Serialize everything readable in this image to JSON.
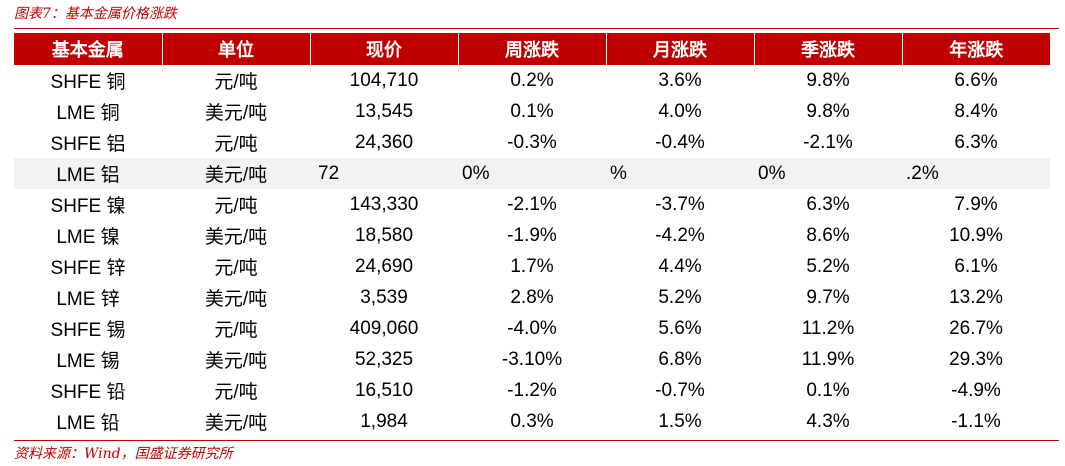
{
  "caption": "图表7：基本金属价格涨跌",
  "source": "资料来源：Wind，国盛证券研究所",
  "colors": {
    "header_bg": "#c00000",
    "positive": "#ff0000",
    "negative": "#00a040"
  },
  "headers": [
    "基本金属",
    "单位",
    "现价",
    "周涨跌",
    "月涨跌",
    "季涨跌",
    "年涨跌"
  ],
  "rows": [
    {
      "metal": "SHFE 铜",
      "unit": "元/吨",
      "price": "104,710",
      "week": "0.2%",
      "month": "3.6%",
      "quarter": "9.8%",
      "year": "6.6%"
    },
    {
      "metal": "LME 铜",
      "unit": "美元/吨",
      "price": "13,545",
      "week": "0.1%",
      "month": "4.0%",
      "quarter": "9.8%",
      "year": "8.4%"
    },
    {
      "metal": "SHFE 铝",
      "unit": "元/吨",
      "price": "24,360",
      "week": "-0.3%",
      "month": "-0.4%",
      "quarter": "-2.1%",
      "year": "6.3%"
    },
    {
      "metal": "LME 铝",
      "unit": "美元/吨",
      "price": "72",
      "week": "0%",
      "month": "%",
      "quarter": "0%",
      "year": ".2%"
    },
    {
      "metal": "SHFE 镍",
      "unit": "元/吨",
      "price": "143,330",
      "week": "-2.1%",
      "month": "-3.7%",
      "quarter": "6.3%",
      "year": "7.9%"
    },
    {
      "metal": "LME 镍",
      "unit": "美元/吨",
      "price": "18,580",
      "week": "-1.9%",
      "month": "-4.2%",
      "quarter": "8.6%",
      "year": "10.9%"
    },
    {
      "metal": "SHFE 锌",
      "unit": "元/吨",
      "price": "24,690",
      "week": "1.7%",
      "month": "4.4%",
      "quarter": "5.2%",
      "year": "6.1%"
    },
    {
      "metal": "LME 锌",
      "unit": "美元/吨",
      "price": "3,539",
      "week": "2.8%",
      "month": "5.2%",
      "quarter": "9.7%",
      "year": "13.2%"
    },
    {
      "metal": "SHFE 锡",
      "unit": "元/吨",
      "price": "409,060",
      "week": "-4.0%",
      "month": "5.6%",
      "quarter": "11.2%",
      "year": "26.7%"
    },
    {
      "metal": "LME 锡",
      "unit": "美元/吨",
      "price": "52,325",
      "week": "-3.10%",
      "month": "6.8%",
      "quarter": "11.9%",
      "year": "29.3%"
    },
    {
      "metal": "SHFE 铅",
      "unit": "元/吨",
      "price": "16,510",
      "week": "-1.2%",
      "month": "-0.7%",
      "quarter": "0.1%",
      "year": "-4.9%"
    },
    {
      "metal": "LME 铅",
      "unit": "美元/吨",
      "price": "1,984",
      "week": "0.3%",
      "month": "1.5%",
      "quarter": "4.3%",
      "year": "-1.1%"
    }
  ]
}
